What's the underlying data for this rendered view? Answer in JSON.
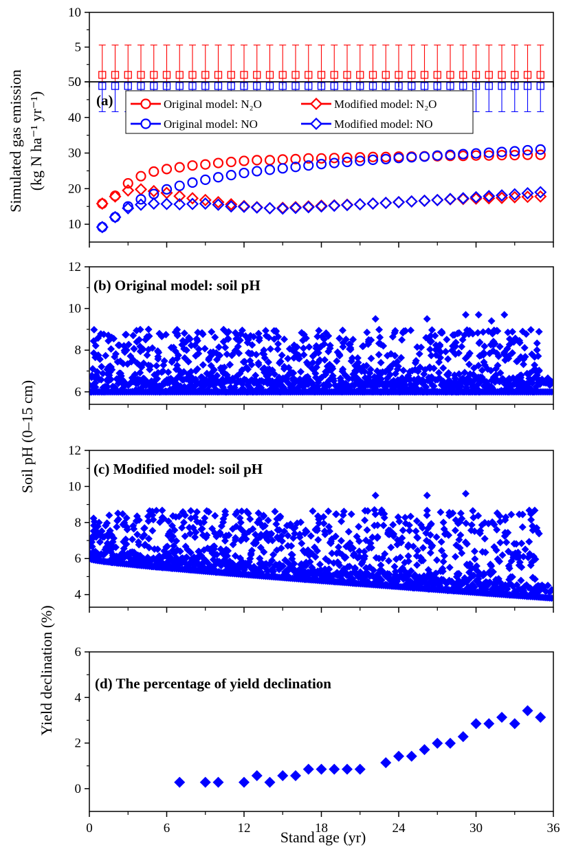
{
  "chart_data": {
    "type": "multi-panel",
    "xlabel": "Stand age (yr)",
    "xlim": [
      0,
      36
    ],
    "xticks": [
      0,
      6,
      12,
      18,
      24,
      30,
      36
    ],
    "ylabel_ab_line1": "Simulated gas emission",
    "ylabel_ab_line2": "(kg N ha⁻¹ yr⁻¹)",
    "ylabel_bc": "Soil pH (0–15 cm)",
    "ylabel_d": "Yield declination (%)",
    "colors": {
      "red": "#ff0000",
      "blue": "#0000ff"
    },
    "top": {
      "ylim": [
        0,
        10
      ],
      "yticks": [
        0,
        5,
        10
      ],
      "x": [
        1,
        2,
        3,
        4,
        5,
        6,
        7,
        8,
        9,
        10,
        11,
        12,
        13,
        14,
        15,
        16,
        17,
        18,
        19,
        20,
        21,
        22,
        23,
        24,
        25,
        26,
        27,
        28,
        29,
        30,
        31,
        32,
        33,
        34,
        35
      ],
      "series": [
        {
          "color": "red",
          "mean": 1.0,
          "upper": 5.3,
          "lower": 0.0
        },
        {
          "color": "blue",
          "mean": -0.6,
          "upper": 0.0,
          "lower": -4.3
        }
      ]
    },
    "a": {
      "label": "(a)",
      "ylim": [
        5,
        50
      ],
      "yticks": [
        10,
        20,
        30,
        40,
        50
      ],
      "legend": [
        "Original model: N₂O",
        "Modified model: N₂O",
        "Original model: NO",
        "Modified model: NO"
      ],
      "x": [
        1,
        2,
        3,
        4,
        5,
        6,
        7,
        8,
        9,
        10,
        11,
        12,
        13,
        14,
        15,
        16,
        17,
        18,
        19,
        20,
        21,
        22,
        23,
        24,
        25,
        26,
        27,
        28,
        29,
        30,
        31,
        32,
        33,
        34,
        35
      ],
      "series": [
        {
          "name": "Original model: N₂O",
          "color": "red",
          "marker": "circle",
          "values": [
            15.8,
            18.0,
            21.5,
            23.5,
            24.8,
            25.5,
            26.0,
            26.5,
            26.8,
            27.2,
            27.5,
            27.8,
            28.0,
            28.0,
            28.2,
            28.3,
            28.5,
            28.5,
            28.6,
            28.7,
            28.8,
            28.9,
            28.9,
            29.0,
            29.0,
            29.1,
            29.1,
            29.2,
            29.2,
            29.3,
            29.3,
            29.4,
            29.4,
            29.5,
            29.5
          ]
        },
        {
          "name": "Modified model: N₂O",
          "color": "red",
          "marker": "diamond",
          "values": [
            15.8,
            17.8,
            19.5,
            19.8,
            19.3,
            18.8,
            17.9,
            17.3,
            16.8,
            16.2,
            15.6,
            15.1,
            14.8,
            14.5,
            14.6,
            14.8,
            15.0,
            15.2,
            15.3,
            15.5,
            15.6,
            15.8,
            16.0,
            16.2,
            16.4,
            16.6,
            16.8,
            17.0,
            17.1,
            17.2,
            17.3,
            17.4,
            17.6,
            17.7,
            17.8
          ]
        },
        {
          "name": "Original model: NO",
          "color": "blue",
          "marker": "circle",
          "values": [
            9.2,
            12.0,
            15.0,
            17.0,
            18.5,
            19.8,
            20.8,
            21.7,
            22.5,
            23.2,
            23.8,
            24.4,
            24.9,
            25.3,
            25.7,
            26.1,
            26.5,
            26.9,
            27.2,
            27.5,
            27.8,
            28.1,
            28.3,
            28.6,
            28.8,
            29.0,
            29.3,
            29.5,
            29.7,
            29.9,
            30.1,
            30.3,
            30.5,
            30.8,
            31.0
          ]
        },
        {
          "name": "Modified model: NO",
          "color": "blue",
          "marker": "diamond",
          "values": [
            9.2,
            12.0,
            14.5,
            15.5,
            15.8,
            15.7,
            15.6,
            15.7,
            15.8,
            15.5,
            15.0,
            14.9,
            14.7,
            14.5,
            14.4,
            14.6,
            14.8,
            15.0,
            15.2,
            15.4,
            15.6,
            15.8,
            16.0,
            16.2,
            16.4,
            16.6,
            16.8,
            17.1,
            17.3,
            17.6,
            17.9,
            18.1,
            18.4,
            18.7,
            19.0
          ]
        }
      ]
    },
    "b": {
      "label": "(b) Original model: soil pH",
      "ylim": [
        5.4,
        12
      ],
      "yticks": [
        6,
        8,
        10,
        12
      ],
      "color": "blue",
      "marker": "diamond",
      "kind": "dense_daily_scatter",
      "baseline": 6.0,
      "annual_range": [
        0,
        35
      ],
      "typical_max": 9.0,
      "peaks": [
        [
          22.2,
          9.5
        ],
        [
          26.2,
          9.5
        ],
        [
          29.2,
          9.7
        ],
        [
          30.2,
          9.7
        ],
        [
          31.2,
          9.4
        ],
        [
          32.2,
          9.7
        ]
      ]
    },
    "c": {
      "label": "(c) Modified model: soil pH",
      "ylim": [
        3.3,
        12
      ],
      "yticks": [
        4,
        6,
        8,
        10,
        12
      ],
      "color": "blue",
      "marker": "diamond",
      "kind": "dense_daily_scatter",
      "baseline_start": 6.0,
      "baseline_end": 3.8,
      "typical_max": 8.7,
      "peaks": [
        [
          22.2,
          9.5
        ],
        [
          26.2,
          9.5
        ],
        [
          29.2,
          9.6
        ]
      ]
    },
    "d": {
      "label": "(d) The percentage of yield declination",
      "ylim": [
        -1,
        6
      ],
      "yticks": [
        0,
        2,
        4,
        6
      ],
      "color": "blue",
      "marker": "diamond",
      "x": [
        7,
        9,
        10,
        12,
        13,
        14,
        15,
        16,
        17,
        18,
        19,
        20,
        21,
        23,
        24,
        25,
        26,
        27,
        28,
        29,
        30,
        31,
        32,
        33,
        34,
        35
      ],
      "values": [
        0.28,
        0.28,
        0.28,
        0.28,
        0.57,
        0.28,
        0.57,
        0.57,
        0.85,
        0.85,
        0.85,
        0.85,
        0.85,
        1.14,
        1.42,
        1.42,
        1.71,
        1.99,
        1.99,
        2.28,
        2.85,
        2.85,
        3.13,
        2.85,
        3.42,
        3.13
      ]
    }
  }
}
